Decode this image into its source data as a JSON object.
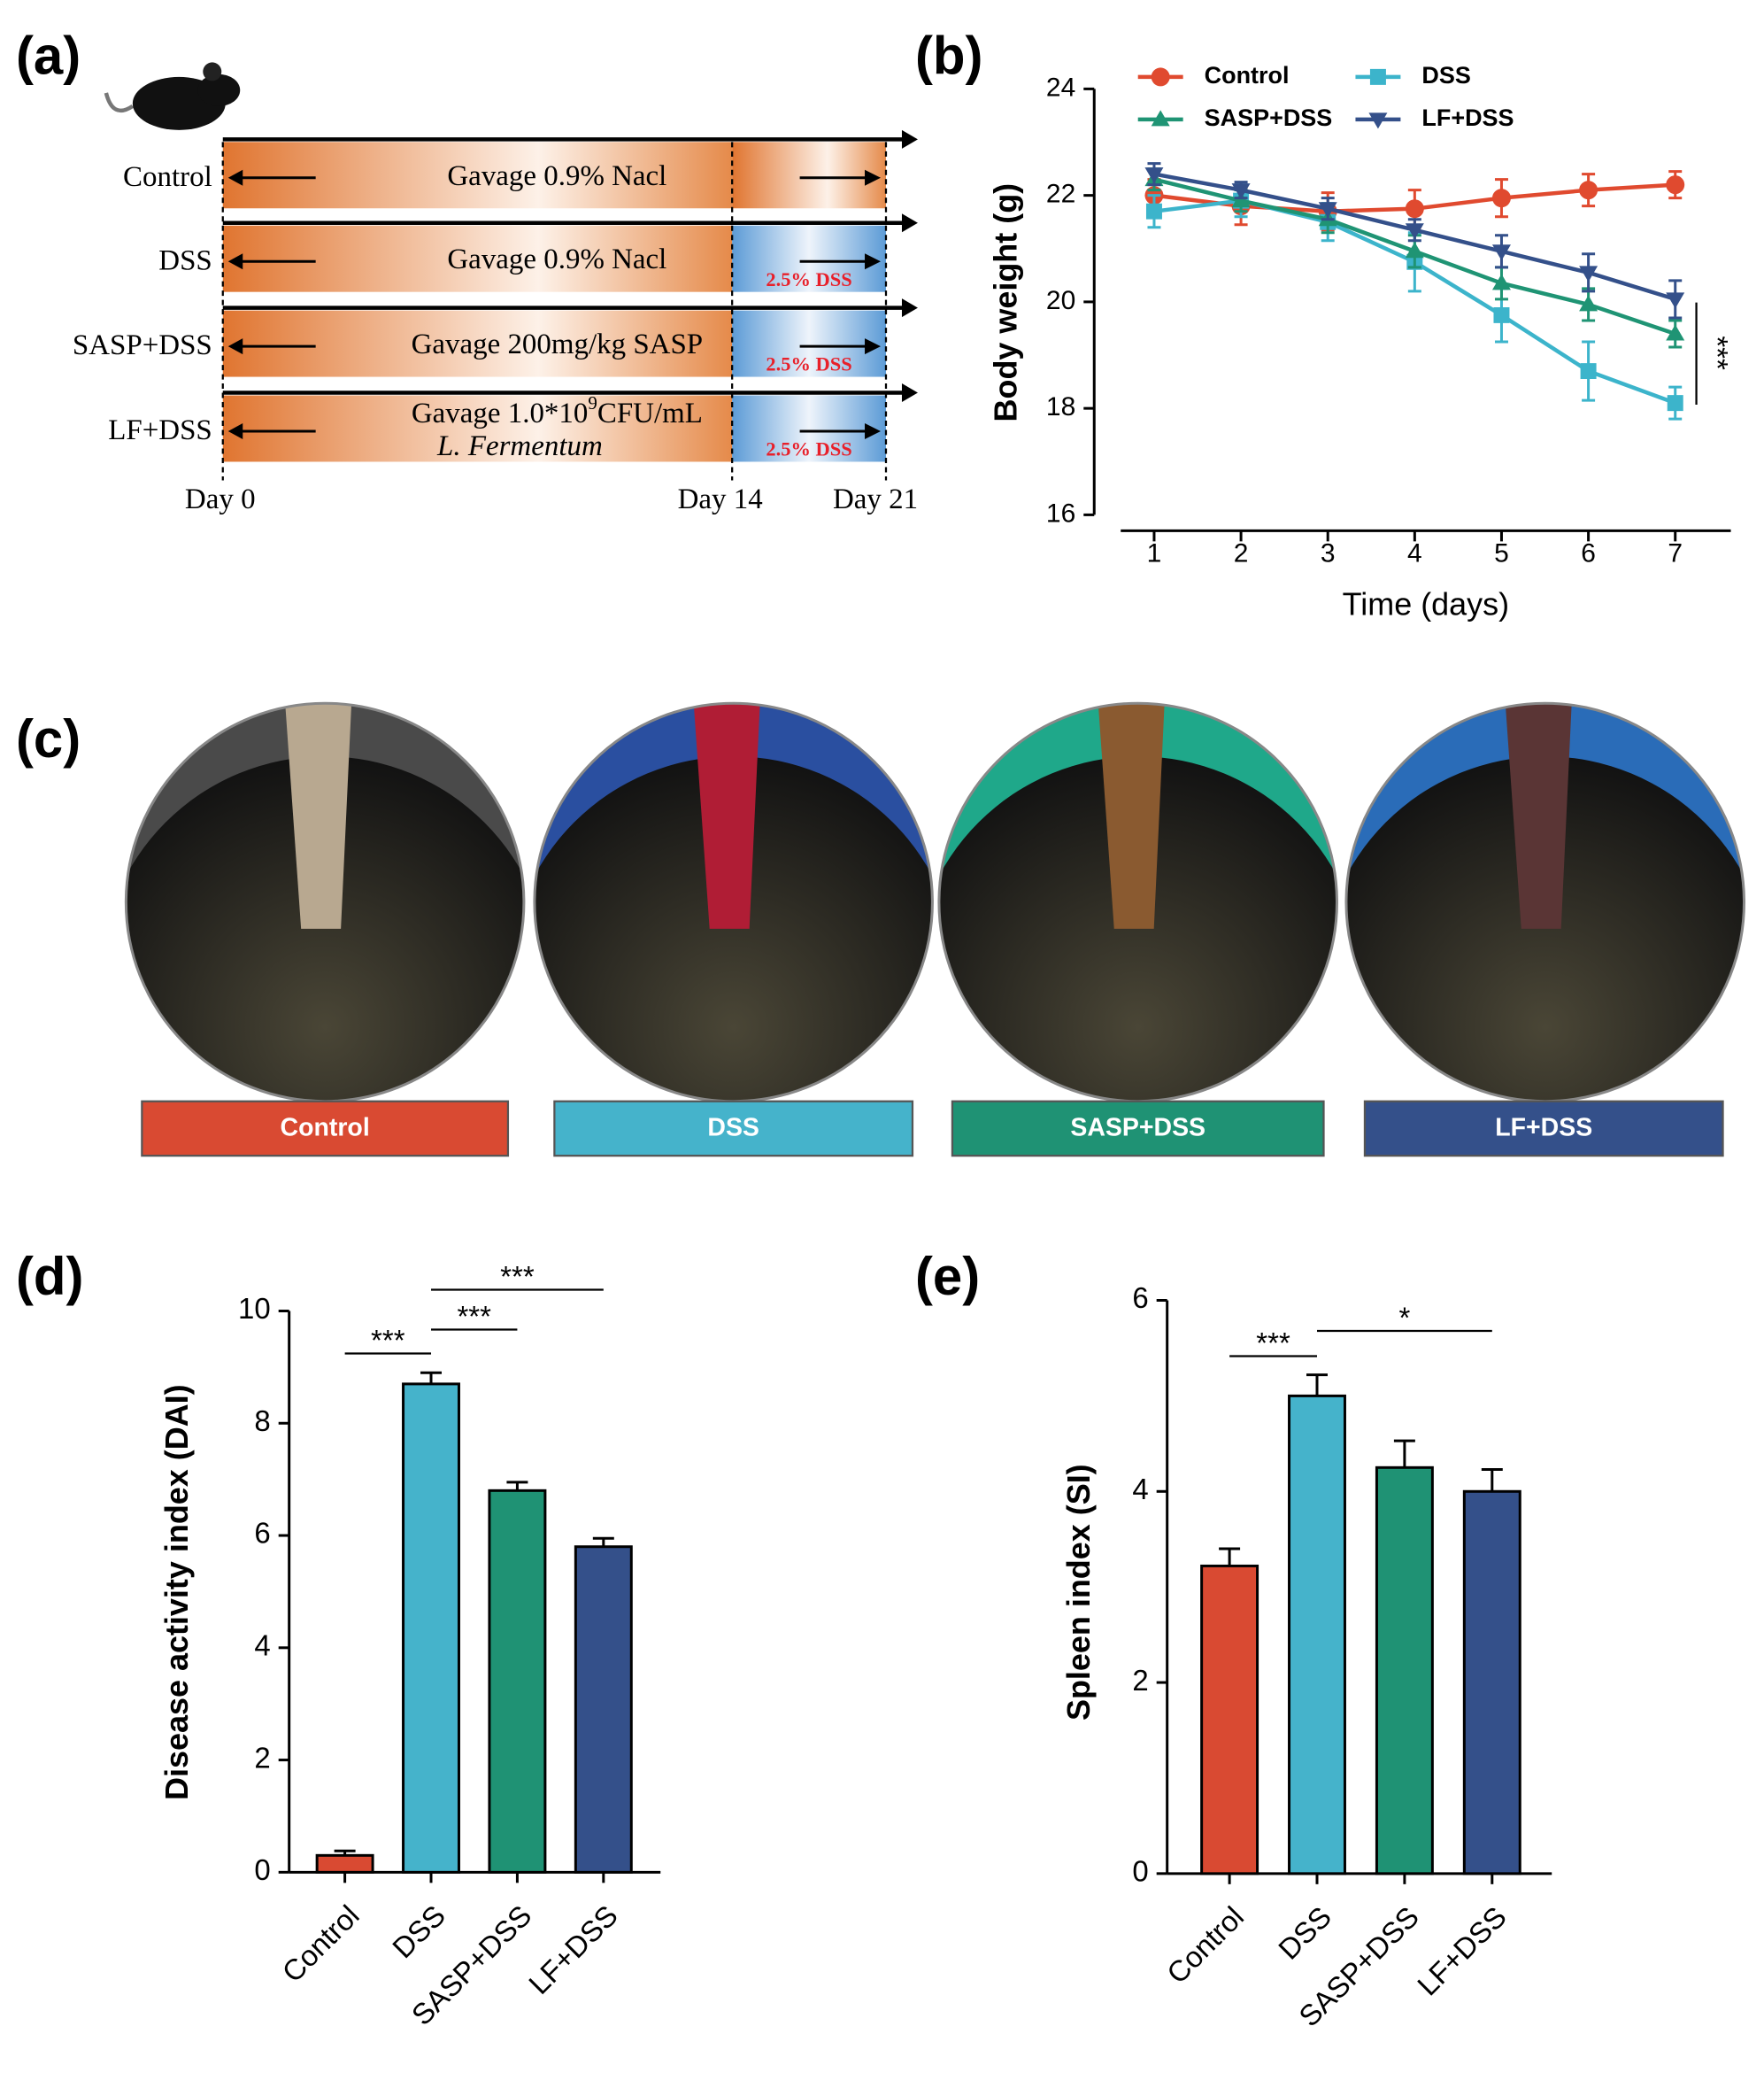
{
  "schematic": {
    "label": "(a)",
    "rows": [
      {
        "group": "Control",
        "text": [
          "Gavage 0.9% Nacl"
        ]
      },
      {
        "group": "DSS",
        "text": [
          "Gavage 0.9% Nacl"
        ],
        "dss": "2.5% DSS"
      },
      {
        "group": "SASP+DSS",
        "text": [
          "Gavage 200mg/kg SASP"
        ],
        "dss": "2.5% DSS"
      },
      {
        "group": "LF+DSS",
        "text": [
          "Gavage 1.0*10",
          "9",
          "CFU/mL"
        ],
        "text2": "L. Fermentum",
        "dss": "2.5% DSS"
      }
    ],
    "days": [
      "Day 0",
      "Day 14",
      "Day 21"
    ]
  },
  "photos": {
    "label": "(c)",
    "groups": [
      "Control",
      "DSS",
      "SASP+DSS",
      "LF+DSS"
    ],
    "colors": [
      "#d94a32",
      "#45b3cb",
      "#1f9274",
      "#34508a"
    ]
  },
  "chart_data": [
    {
      "type": "line",
      "label": "(b)",
      "x_label": "Time (days)",
      "y_label": "Body weight (g)",
      "x": [
        1,
        2,
        3,
        4,
        5,
        6,
        7
      ],
      "xlim": [
        0.31,
        7.64
      ],
      "xticks": [
        1,
        2,
        3,
        4,
        5,
        6,
        7
      ],
      "ylim": [
        16,
        24
      ],
      "yticks": [
        16,
        18,
        20,
        22,
        24
      ],
      "legend": "top",
      "annotation": "***",
      "series": [
        {
          "name": "Control",
          "color": "#e04a2f",
          "marker": "circle",
          "values": [
            22.0,
            21.8,
            21.7,
            21.75,
            21.95,
            22.1,
            22.2
          ],
          "errors": [
            0.3,
            0.35,
            0.35,
            0.35,
            0.35,
            0.3,
            0.25
          ]
        },
        {
          "name": "DSS",
          "color": "#3cb4cb",
          "marker": "square",
          "values": [
            21.7,
            21.9,
            21.5,
            20.75,
            19.75,
            18.7,
            18.1
          ],
          "errors": [
            0.3,
            0.3,
            0.35,
            0.55,
            0.5,
            0.55,
            0.3
          ]
        },
        {
          "name": "SASP+DSS",
          "color": "#1f9474",
          "marker": "triangle-up",
          "values": [
            22.3,
            21.9,
            21.55,
            20.95,
            20.35,
            19.95,
            19.4
          ],
          "errors": [
            0.2,
            0.2,
            0.25,
            0.3,
            0.3,
            0.3,
            0.25
          ]
        },
        {
          "name": "LF+DSS",
          "color": "#34508a",
          "marker": "triangle-down",
          "values": [
            22.4,
            22.1,
            21.75,
            21.35,
            20.95,
            20.55,
            20.05
          ],
          "errors": [
            0.2,
            0.15,
            0.2,
            0.2,
            0.3,
            0.35,
            0.35
          ]
        }
      ]
    },
    {
      "type": "bar",
      "label": "(d)",
      "y_label": "Disease activity index (DAI)",
      "categories": [
        "Control",
        "DSS",
        "SASP+DSS",
        "LF+DSS"
      ],
      "values": [
        0.3,
        8.7,
        6.8,
        5.8
      ],
      "errors": [
        0.08,
        0.2,
        0.15,
        0.15
      ],
      "colors": [
        "#d94a32",
        "#45b3cb",
        "#1f9274",
        "#34508a"
      ],
      "ylim": [
        0,
        10
      ],
      "yticks": [
        0,
        2,
        4,
        6,
        8,
        10
      ],
      "annotations": [
        "***",
        "***",
        "***"
      ]
    },
    {
      "type": "bar",
      "label": "(e)",
      "y_label": "Spleen index (SI)",
      "categories": [
        "Control",
        "DSS",
        "SASP+DSS",
        "LF+DSS"
      ],
      "values": [
        3.22,
        5.0,
        4.25,
        4.0
      ],
      "errors": [
        0.18,
        0.22,
        0.28,
        0.23
      ],
      "colors": [
        "#d94a32",
        "#45b3cb",
        "#1f9274",
        "#34508a"
      ],
      "ylim": [
        0,
        6
      ],
      "yticks": [
        0,
        2,
        4,
        6
      ],
      "annotations": [
        "***",
        "*"
      ]
    }
  ]
}
